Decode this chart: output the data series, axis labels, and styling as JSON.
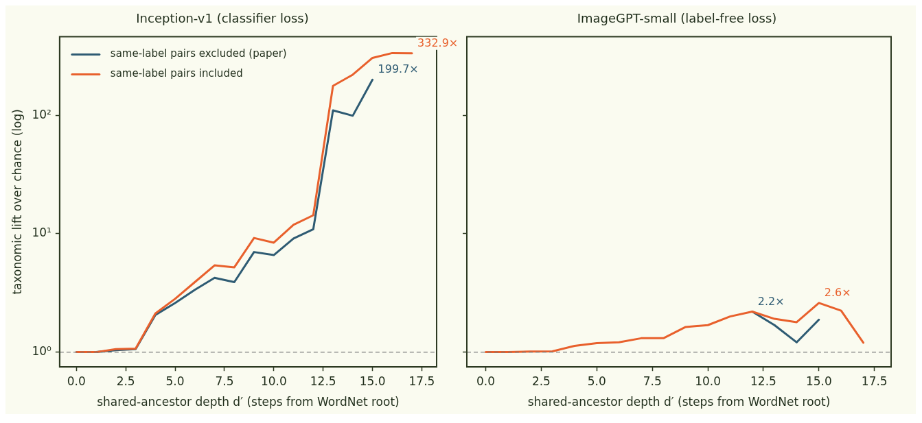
{
  "chart_data": [
    {
      "type": "line",
      "title": "Inception-v1 (classifier loss)",
      "xlabel": "shared-ancestor depth d′ (steps from WordNet root)",
      "ylabel": "taxonomic lift over chance (log)",
      "x": [
        0,
        1,
        2,
        3,
        4,
        5,
        6,
        7,
        8,
        9,
        10,
        11,
        12,
        13,
        14,
        15,
        16,
        17
      ],
      "series": [
        {
          "name": "same-label pairs excluded (paper)",
          "color": "#2e5b73",
          "values": [
            1,
            1,
            1.04,
            1.06,
            2.06,
            2.6,
            3.36,
            4.24,
            3.9,
            7.0,
            6.6,
            9.1,
            10.9,
            110,
            99,
            199.7,
            null,
            null
          ]
        },
        {
          "name": "same-label pairs included",
          "color": "#e8602c",
          "values": [
            1,
            1,
            1.06,
            1.07,
            2.12,
            2.82,
            3.9,
            5.4,
            5.2,
            9.2,
            8.4,
            11.9,
            14.3,
            177,
            220,
            305,
            335,
            332.9
          ]
        }
      ],
      "annotations": [
        {
          "text": "199.7×",
          "x": 15,
          "y": 199.7
        },
        {
          "text": "332.9×",
          "x": 17,
          "y": 332.9
        }
      ],
      "ref_lines": [
        {
          "axis": "y",
          "value": 1,
          "color": "#777777",
          "line_style": "dashed"
        }
      ],
      "log": "y",
      "xlim": [
        -0.85,
        18.25
      ],
      "ylim": [
        0.75,
        460
      ],
      "xticks": [
        {
          "value": 0,
          "label": "0.0"
        },
        2.5,
        {
          "value": 5,
          "label": "5.0"
        },
        7.5,
        {
          "value": 10,
          "label": "10.0"
        },
        12.5,
        {
          "value": 15,
          "label": "15.0"
        },
        17.5
      ],
      "yticks": [
        {
          "value": 1,
          "label": "10⁰"
        },
        {
          "value": 10,
          "label": "10¹"
        },
        {
          "value": 100,
          "label": "10²"
        }
      ],
      "grid": false,
      "legend": "top left",
      "line_style": "solid",
      "marker": "none"
    },
    {
      "type": "line",
      "title": "ImageGPT-small (label-free loss)",
      "xlabel": "shared-ancestor depth d′ (steps from WordNet root)",
      "x": [
        0,
        1,
        2,
        3,
        4,
        5,
        6,
        7,
        8,
        9,
        10,
        11,
        12,
        13,
        14,
        15,
        16,
        17
      ],
      "series": [
        {
          "color": "#2e5b73",
          "values": [
            null,
            null,
            null,
            null,
            null,
            null,
            null,
            null,
            null,
            null,
            null,
            null,
            2.2,
            1.69,
            1.21,
            1.88,
            null,
            null
          ]
        },
        {
          "color": "#e8602c",
          "values": [
            1,
            1,
            1.01,
            1.015,
            1.13,
            1.19,
            1.21,
            1.31,
            1.31,
            1.63,
            1.69,
            2.0,
            2.2,
            1.91,
            1.79,
            2.6,
            2.24,
            1.2
          ]
        }
      ],
      "annotations": [
        {
          "text": "2.2×",
          "x": 12,
          "y": 2.2
        },
        {
          "text": "2.6×",
          "x": 15,
          "y": 2.6
        }
      ],
      "ref_lines": [
        {
          "axis": "y",
          "value": 1,
          "color": "#777777",
          "line_style": "dashed"
        }
      ],
      "log": "y",
      "xlim": [
        -0.85,
        18.25
      ],
      "ylim": [
        0.75,
        460
      ],
      "xticks": [
        {
          "value": 0,
          "label": "0.0"
        },
        2.5,
        {
          "value": 5,
          "label": "5.0"
        },
        7.5,
        {
          "value": 10,
          "label": "10.0"
        },
        12.5,
        {
          "value": 15,
          "label": "15.0"
        },
        17.5
      ],
      "yticks": [
        {
          "value": 1,
          "label": null
        },
        {
          "value": 10,
          "label": null
        },
        {
          "value": 100,
          "label": null
        }
      ],
      "tick_labels": "x",
      "grid": false,
      "legend": false,
      "line_style": "solid",
      "marker": "none"
    }
  ]
}
